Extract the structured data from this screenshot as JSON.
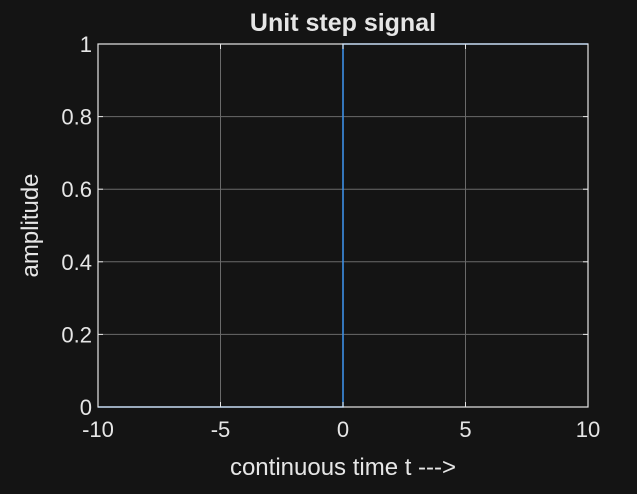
{
  "chart_data": {
    "type": "line",
    "title": "Unit step signal",
    "xlabel": "continuous time t --->",
    "ylabel": "amplitude",
    "xlim": [
      -10,
      10
    ],
    "ylim": [
      0,
      1
    ],
    "grid": true,
    "x_ticks": [
      -10,
      -5,
      0,
      5,
      10
    ],
    "x_tick_labels": [
      "-10",
      "-5",
      "0",
      "5",
      "10"
    ],
    "y_ticks": [
      0,
      0.2,
      0.4,
      0.6,
      0.8,
      1
    ],
    "y_tick_labels": [
      "0",
      "0.2",
      "0.4",
      "0.6",
      "0.8",
      "1"
    ],
    "series": [
      {
        "x": [
          -10,
          0,
          0,
          10
        ],
        "y": [
          0,
          0,
          1,
          1
        ]
      }
    ]
  },
  "colors": {
    "background": "#141414",
    "axes_background": "#141414",
    "axes_frame": "#e6e6e6",
    "grid": "#6a6a6a",
    "text": "#e6e6e6",
    "series": "#3d8ee3"
  }
}
